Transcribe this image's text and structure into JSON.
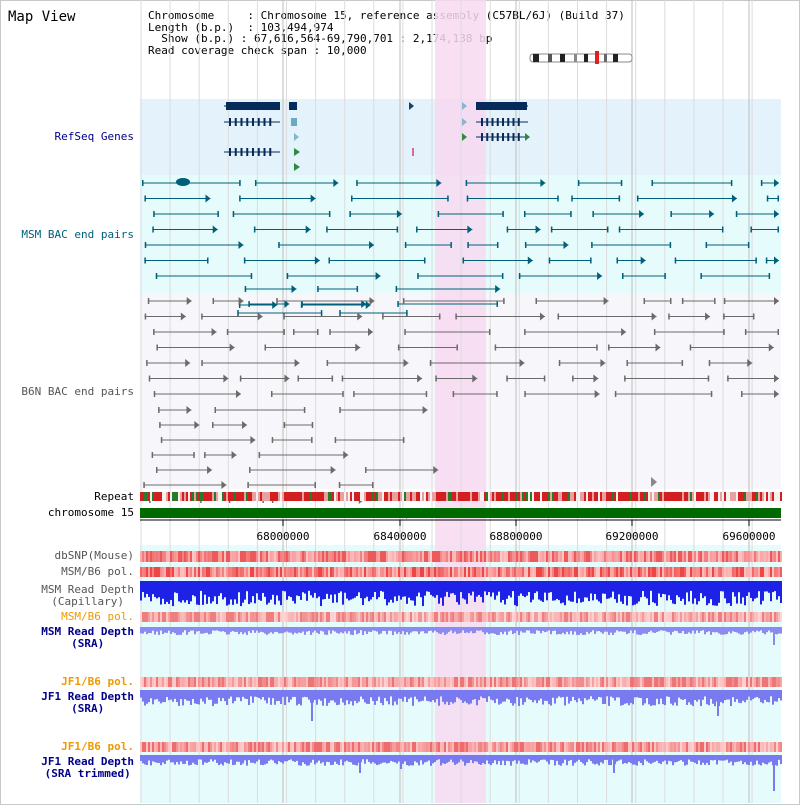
{
  "title": "Map View",
  "info": {
    "chromosome_key": "Chromosome",
    "chromosome_val": "Chromosome 15, reference assembly (C57BL/6J) (Build 37)",
    "length_key": "Length (b.p.)",
    "length_val": "103,494,974",
    "show_key": "Show (b.p.)",
    "show_val": "67,616,564-69,790,701 : 2,174,138 bp",
    "coverage_key": "Read coverage check span",
    "coverage_val": "10,000"
  },
  "tracks": {
    "refseq": "RefSeq Genes",
    "msm_bac": "MSM BAC end pairs",
    "b6n_bac": "B6N BAC end pairs",
    "repeat": "Repeat",
    "chromosome": "chromosome 15",
    "dbsnp": "dbSNP(Mouse)",
    "msm_pol1": "MSM/B6 pol.",
    "msm_depth_cap_1": "MSM Read Depth",
    "msm_depth_cap_2": "(Capillary)",
    "msm_pol2": "MSM/B6 pol.",
    "msm_depth_sra_1": "MSM Read Depth",
    "msm_depth_sra_2": "(SRA)",
    "jf1_pol1": "JF1/B6 pol.",
    "jf1_depth_1": "JF1 Read Depth",
    "jf1_depth_2": "(SRA)",
    "jf1_pol2": "JF1/B6 pol.",
    "jf1_depth_trim_1": "JF1 Read Depth",
    "jf1_depth_trim_2": "(SRA trimmed)"
  },
  "axis_ticks": [
    "68000000",
    "68400000",
    "68800000",
    "69200000",
    "69600000"
  ],
  "colors": {
    "refseq_bg": "#e3f2fb",
    "msm_bg": "#e6fbfb",
    "highlight": "#f7d9f0",
    "navy": "#00008b",
    "teal": "#00607a",
    "orange": "#ee9900",
    "chrom_green": "#006a00"
  }
}
